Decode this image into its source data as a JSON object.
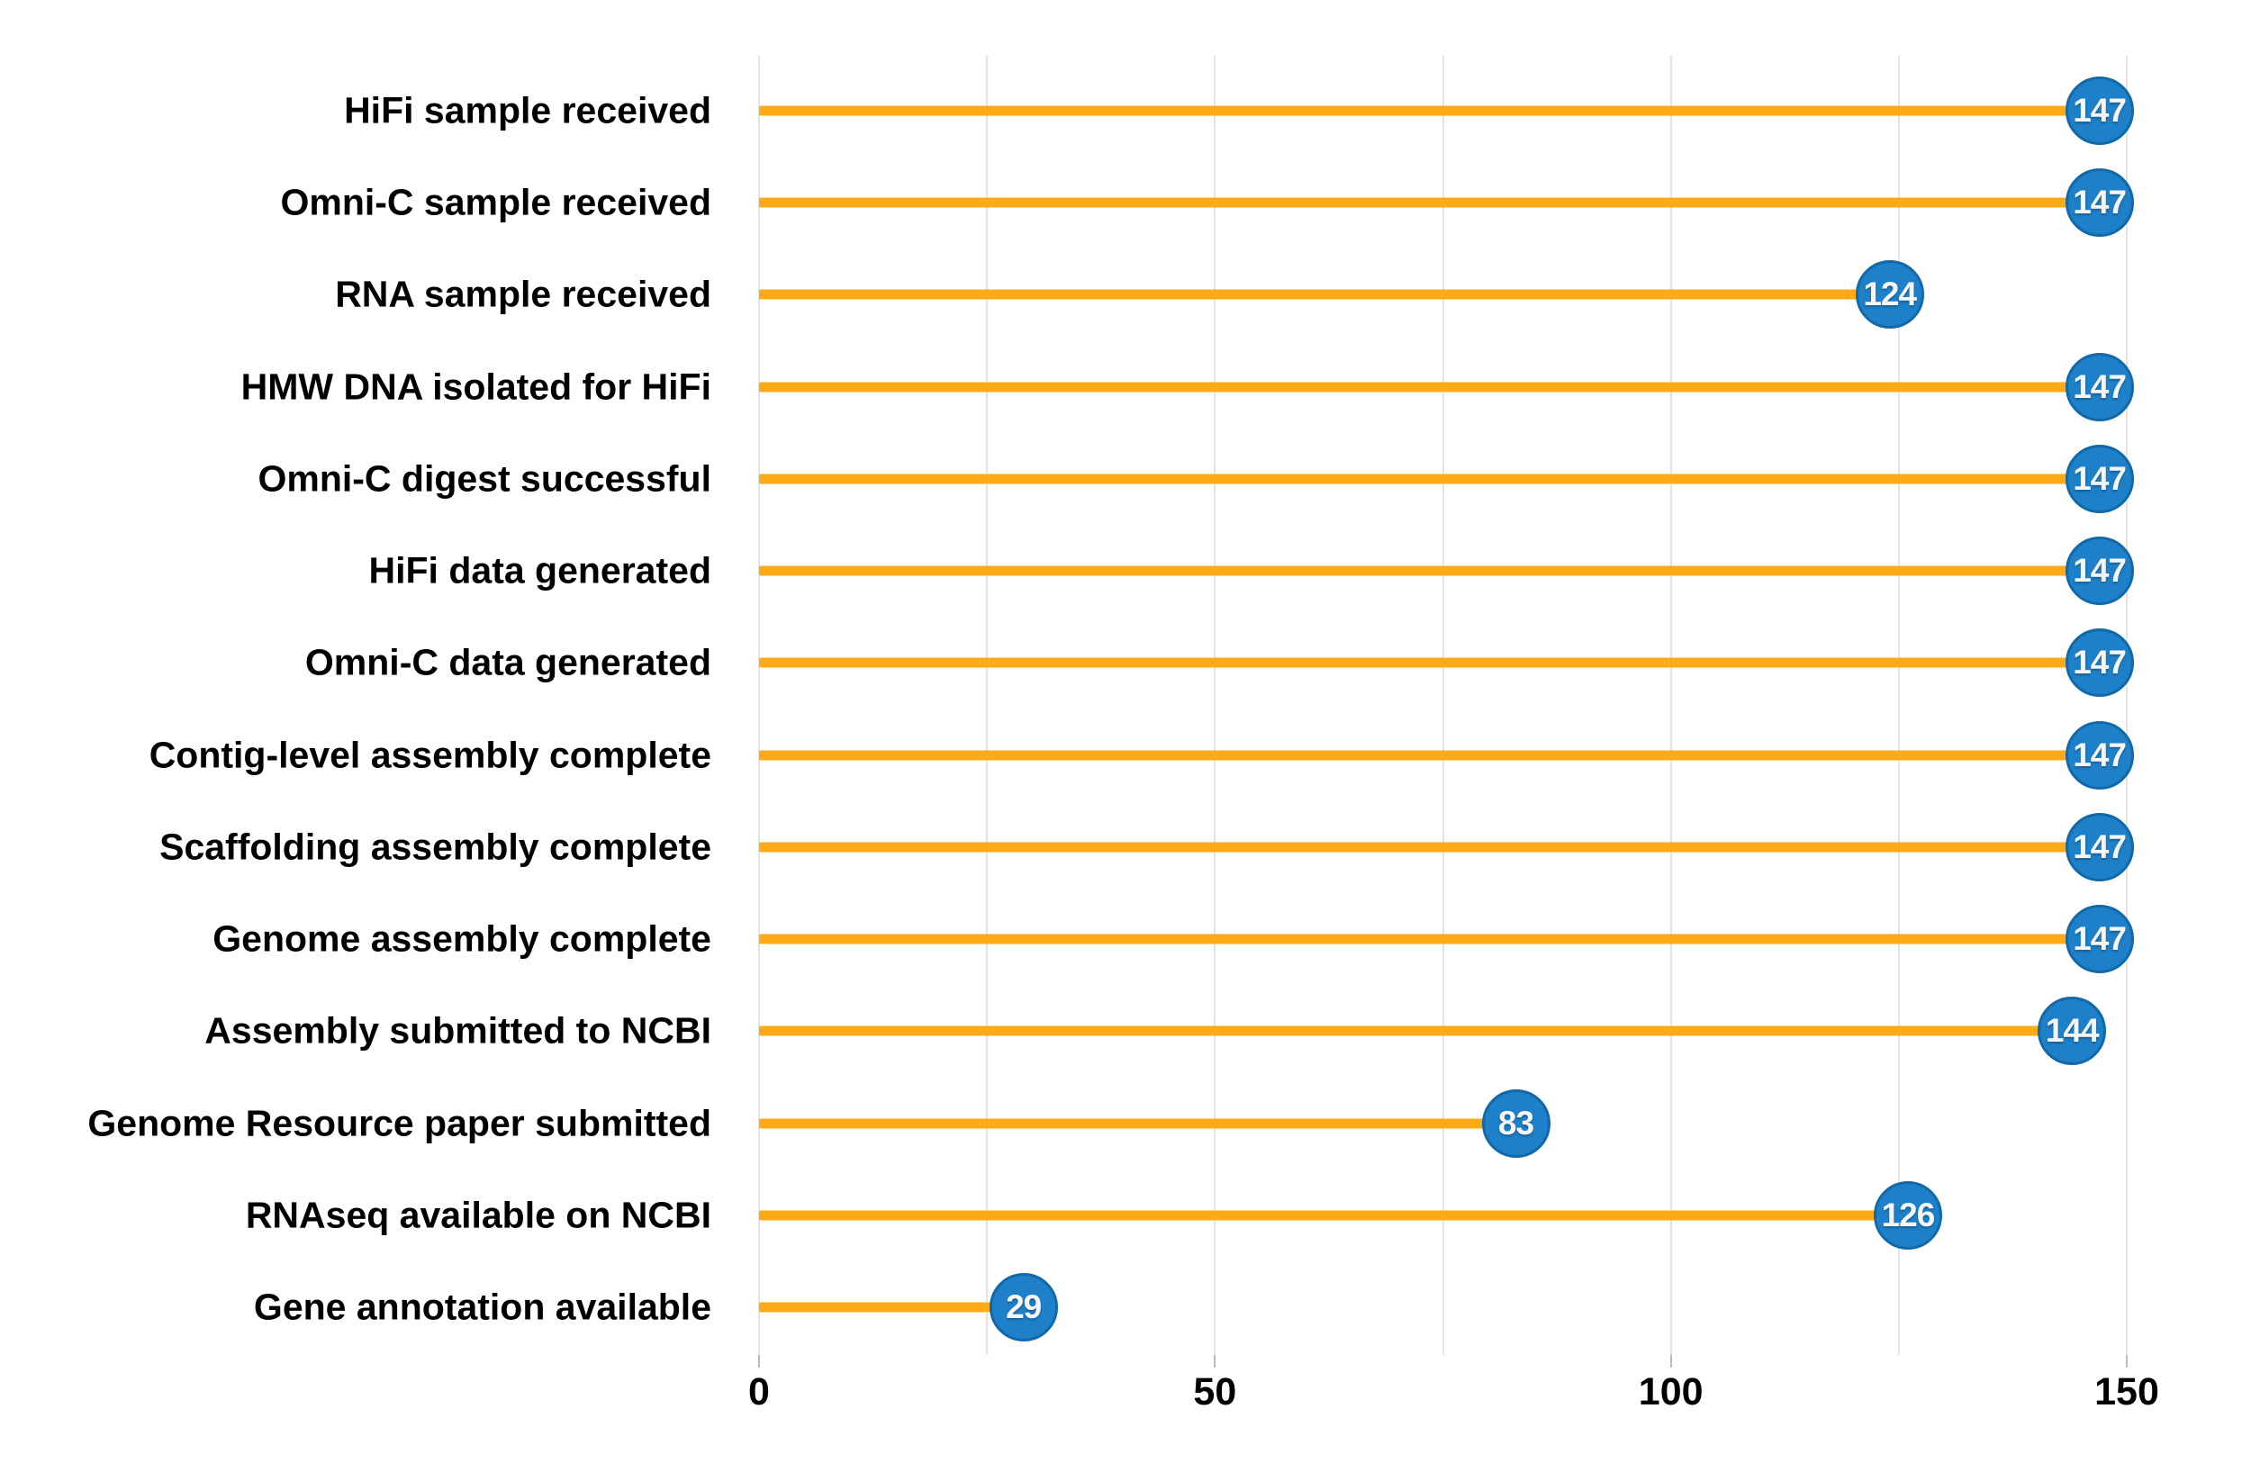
{
  "page": {
    "background": "#ffffff"
  },
  "chart_data": {
    "type": "bar",
    "style": "lollipop",
    "orientation": "horizontal",
    "title": "",
    "xlabel": "",
    "ylabel": "",
    "categories": [
      "HiFi sample received",
      "Omni-C sample received",
      "RNA sample received",
      "HMW DNA isolated for HiFi",
      "Omni-C digest successful",
      "HiFi data generated",
      "Omni-C data generated",
      "Contig-level assembly complete",
      "Scaffolding assembly complete",
      "Genome assembly complete",
      "Assembly submitted to NCBI",
      "Genome Resource paper submitted",
      "RNAseq available on NCBI",
      "Gene annotation available"
    ],
    "values": [
      147,
      147,
      124,
      147,
      147,
      147,
      147,
      147,
      147,
      147,
      144,
      83,
      126,
      29
    ],
    "xlim": [
      0,
      150
    ],
    "xticks_labeled": [
      0,
      50,
      100,
      150
    ],
    "grid_interval": 25,
    "grid": true,
    "legend": false,
    "colors": {
      "stem": "#fcaa17",
      "circle_fill": "#1d80c8",
      "circle_border": "#1269a9",
      "value_text": "#f5f5f5",
      "grid_line": "#e3e3e3",
      "tick_mark": "#bbbbbb",
      "label_text": "#000000",
      "tick_label_text": "#000000"
    }
  }
}
